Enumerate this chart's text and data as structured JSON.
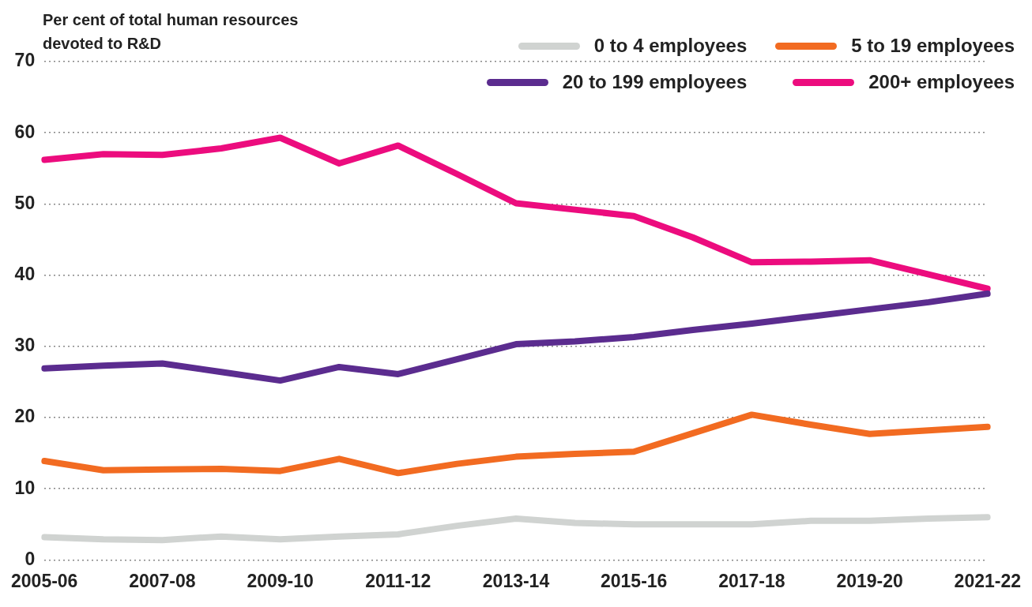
{
  "chart_data": {
    "type": "line",
    "ylabel": "Per cent of total human resources devoted to R&D",
    "categories": [
      "2005-06",
      null,
      "2007-08",
      null,
      "2009-10",
      null,
      "2011-12",
      null,
      "2013-14",
      null,
      "2015-16",
      null,
      "2017-18",
      null,
      "2019-20",
      null,
      "2021-22"
    ],
    "series": [
      {
        "name": "0 to 4 employees",
        "color": "#d0d3d1",
        "values": [
          3.2,
          2.9,
          2.8,
          3.3,
          2.9,
          3.3,
          3.6,
          4.8,
          5.8,
          5.2,
          5.0,
          5.0,
          5.0,
          5.5,
          5.5,
          5.8,
          6.0
        ]
      },
      {
        "name": "5 to 19 employees",
        "color": "#f26b21",
        "values": [
          13.9,
          12.6,
          12.7,
          12.8,
          12.5,
          14.2,
          12.2,
          13.5,
          14.5,
          14.9,
          15.2,
          17.8,
          20.4,
          19.0,
          17.7,
          18.2,
          18.7
        ]
      },
      {
        "name": "20 to 199 employees",
        "color": "#5b2c8f",
        "values": [
          26.9,
          27.3,
          27.6,
          26.4,
          25.2,
          27.1,
          26.1,
          28.2,
          30.3,
          30.7,
          31.3,
          32.3,
          33.2,
          34.2,
          35.2,
          36.2,
          37.4
        ]
      },
      {
        "name": "200+ employees",
        "color": "#ec0c7e",
        "values": [
          56.2,
          57.0,
          56.9,
          57.8,
          59.3,
          55.7,
          58.2,
          54.2,
          50.1,
          49.2,
          48.3,
          45.3,
          41.8,
          41.9,
          42.1,
          40.1,
          38.1
        ]
      }
    ],
    "ylim": [
      0,
      70
    ],
    "yticks": [
      0,
      10,
      20,
      30,
      40,
      50,
      60,
      70
    ],
    "grid": "y",
    "legend": "top right",
    "marker": "none",
    "line_style": "solid"
  }
}
